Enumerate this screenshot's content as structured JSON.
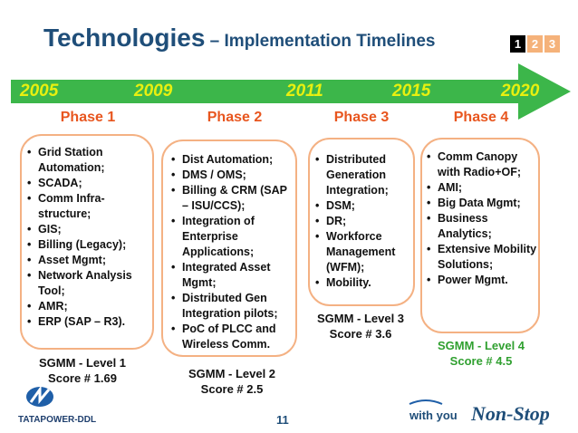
{
  "title": {
    "main": "Technologies",
    "sub": " – Implementation Timelines"
  },
  "pager": [
    {
      "label": "1",
      "color": "#000000"
    },
    {
      "label": "2",
      "color": "#f5b27a"
    },
    {
      "label": "3",
      "color": "#f5b27a"
    }
  ],
  "timeline": {
    "arrow_color": "#3cb64a",
    "year_color": "#e8f010",
    "years": [
      "2005",
      "2009",
      "2011",
      "2015",
      "2020"
    ]
  },
  "phases": [
    {
      "name": "Phase 1",
      "items": [
        "Grid Station Automation;",
        "SCADA;",
        "Comm Infra-structure;",
        "GIS;",
        "Billing (Legacy);",
        "Asset Mgmt;",
        "Network Analysis Tool;",
        "AMR;",
        "ERP (SAP – R3)."
      ],
      "score_line1": "SGMM - Level 1",
      "score_line2": "Score # 1.69",
      "score_color": "dark"
    },
    {
      "name": "Phase 2",
      "items": [
        "Dist Automation;",
        "DMS / OMS;",
        "Billing & CRM (SAP – ISU/CCS);",
        "Integration of Enterprise Applications;",
        "Integrated Asset Mgmt;",
        "Distributed Gen Integration pilots;",
        "PoC of PLCC and Wireless Comm."
      ],
      "score_line1": "SGMM - Level 2",
      "score_line2": "Score # 2.5",
      "score_color": "dark"
    },
    {
      "name": "Phase 3",
      "items": [
        "Distributed Generation Integration;",
        "DSM;",
        "DR;",
        "Workforce Management (WFM);",
        "Mobility."
      ],
      "score_line1": "SGMM - Level 3",
      "score_line2": "Score # 3.6",
      "score_color": "dark"
    },
    {
      "name": "Phase 4",
      "items": [
        "Comm Canopy with Radio+OF;",
        "AMI;",
        "Big Data Mgmt;",
        "Business Analytics;",
        "Extensive Mobility Solutions;",
        "Power Mgmt."
      ],
      "score_line1": "SGMM - Level 4",
      "score_line2": "Score # 4.5",
      "score_color": "green"
    }
  ],
  "footer": {
    "page_number": "11",
    "company_logo_text": "TATAPOWER-DDL",
    "tagline_prefix": "with you",
    "tagline_brand": "Non-Stop"
  }
}
